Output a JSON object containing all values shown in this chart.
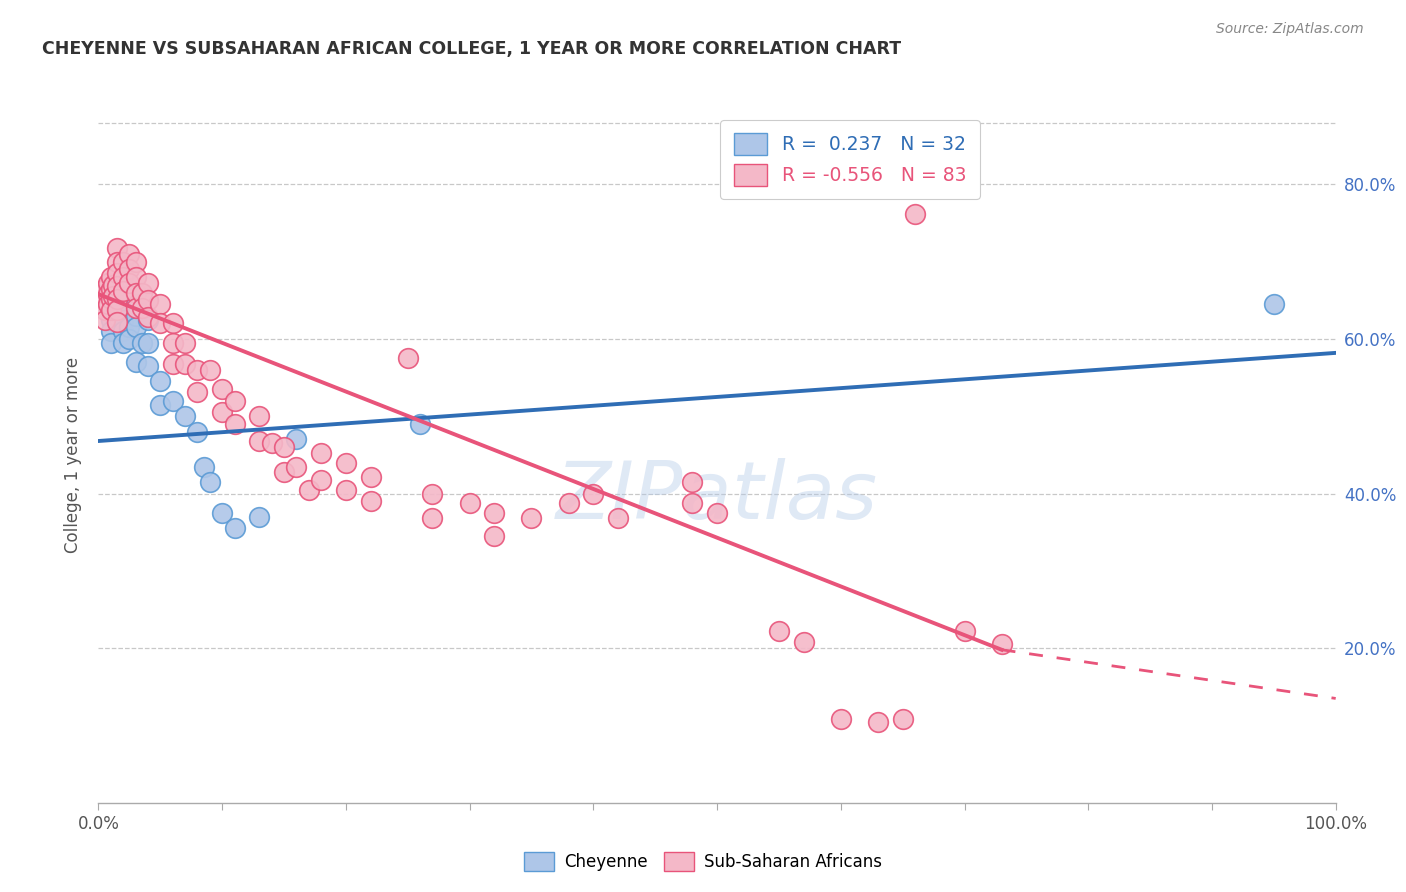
{
  "title": "CHEYENNE VS SUBSAHARAN AFRICAN COLLEGE, 1 YEAR OR MORE CORRELATION CHART",
  "source": "Source: ZipAtlas.com",
  "ylabel": "College, 1 year or more",
  "y_tick_labels": [
    "20.0%",
    "40.0%",
    "60.0%",
    "80.0%"
  ],
  "y_tick_values": [
    0.2,
    0.4,
    0.6,
    0.8
  ],
  "xlim": [
    0.0,
    1.0
  ],
  "ylim": [
    0.0,
    0.9
  ],
  "legend_blue_label": "R =  0.237   N = 32",
  "legend_pink_label": "R = -0.556   N = 83",
  "blue_color": "#aec6e8",
  "pink_color": "#f4b8c8",
  "blue_edge_color": "#5b9bd5",
  "pink_edge_color": "#e8547a",
  "blue_line_color": "#2f6db5",
  "pink_line_color": "#e8547a",
  "watermark_text": "ZIPatlas",
  "blue_scatter": [
    [
      0.01,
      0.625
    ],
    [
      0.01,
      0.61
    ],
    [
      0.01,
      0.595
    ],
    [
      0.015,
      0.63
    ],
    [
      0.02,
      0.655
    ],
    [
      0.02,
      0.64
    ],
    [
      0.02,
      0.625
    ],
    [
      0.02,
      0.61
    ],
    [
      0.02,
      0.595
    ],
    [
      0.025,
      0.615
    ],
    [
      0.025,
      0.6
    ],
    [
      0.03,
      0.645
    ],
    [
      0.03,
      0.63
    ],
    [
      0.03,
      0.615
    ],
    [
      0.03,
      0.57
    ],
    [
      0.035,
      0.595
    ],
    [
      0.04,
      0.625
    ],
    [
      0.04,
      0.595
    ],
    [
      0.04,
      0.565
    ],
    [
      0.05,
      0.545
    ],
    [
      0.05,
      0.515
    ],
    [
      0.06,
      0.52
    ],
    [
      0.07,
      0.5
    ],
    [
      0.08,
      0.48
    ],
    [
      0.085,
      0.435
    ],
    [
      0.09,
      0.415
    ],
    [
      0.1,
      0.375
    ],
    [
      0.11,
      0.355
    ],
    [
      0.13,
      0.37
    ],
    [
      0.16,
      0.47
    ],
    [
      0.26,
      0.49
    ],
    [
      0.95,
      0.645
    ]
  ],
  "pink_scatter": [
    [
      0.005,
      0.665
    ],
    [
      0.005,
      0.65
    ],
    [
      0.005,
      0.638
    ],
    [
      0.005,
      0.625
    ],
    [
      0.008,
      0.672
    ],
    [
      0.008,
      0.658
    ],
    [
      0.008,
      0.645
    ],
    [
      0.01,
      0.68
    ],
    [
      0.01,
      0.665
    ],
    [
      0.01,
      0.652
    ],
    [
      0.01,
      0.638
    ],
    [
      0.012,
      0.67
    ],
    [
      0.012,
      0.655
    ],
    [
      0.015,
      0.718
    ],
    [
      0.015,
      0.7
    ],
    [
      0.015,
      0.685
    ],
    [
      0.015,
      0.668
    ],
    [
      0.015,
      0.652
    ],
    [
      0.015,
      0.638
    ],
    [
      0.015,
      0.622
    ],
    [
      0.02,
      0.7
    ],
    [
      0.02,
      0.68
    ],
    [
      0.02,
      0.662
    ],
    [
      0.025,
      0.71
    ],
    [
      0.025,
      0.69
    ],
    [
      0.025,
      0.672
    ],
    [
      0.03,
      0.7
    ],
    [
      0.03,
      0.68
    ],
    [
      0.03,
      0.66
    ],
    [
      0.03,
      0.64
    ],
    [
      0.035,
      0.66
    ],
    [
      0.035,
      0.64
    ],
    [
      0.04,
      0.672
    ],
    [
      0.04,
      0.65
    ],
    [
      0.04,
      0.628
    ],
    [
      0.05,
      0.645
    ],
    [
      0.05,
      0.62
    ],
    [
      0.06,
      0.62
    ],
    [
      0.06,
      0.595
    ],
    [
      0.06,
      0.568
    ],
    [
      0.07,
      0.595
    ],
    [
      0.07,
      0.568
    ],
    [
      0.08,
      0.56
    ],
    [
      0.08,
      0.532
    ],
    [
      0.09,
      0.56
    ],
    [
      0.1,
      0.535
    ],
    [
      0.1,
      0.505
    ],
    [
      0.11,
      0.52
    ],
    [
      0.11,
      0.49
    ],
    [
      0.13,
      0.5
    ],
    [
      0.13,
      0.468
    ],
    [
      0.14,
      0.465
    ],
    [
      0.15,
      0.46
    ],
    [
      0.15,
      0.428
    ],
    [
      0.16,
      0.435
    ],
    [
      0.17,
      0.405
    ],
    [
      0.18,
      0.452
    ],
    [
      0.18,
      0.418
    ],
    [
      0.2,
      0.44
    ],
    [
      0.2,
      0.405
    ],
    [
      0.22,
      0.422
    ],
    [
      0.22,
      0.39
    ],
    [
      0.25,
      0.575
    ],
    [
      0.27,
      0.4
    ],
    [
      0.27,
      0.368
    ],
    [
      0.3,
      0.388
    ],
    [
      0.32,
      0.375
    ],
    [
      0.32,
      0.345
    ],
    [
      0.35,
      0.368
    ],
    [
      0.38,
      0.388
    ],
    [
      0.4,
      0.4
    ],
    [
      0.42,
      0.368
    ],
    [
      0.48,
      0.415
    ],
    [
      0.48,
      0.388
    ],
    [
      0.5,
      0.375
    ],
    [
      0.55,
      0.222
    ],
    [
      0.57,
      0.208
    ],
    [
      0.6,
      0.108
    ],
    [
      0.63,
      0.105
    ],
    [
      0.65,
      0.108
    ],
    [
      0.66,
      0.762
    ],
    [
      0.7,
      0.222
    ],
    [
      0.73,
      0.205
    ]
  ],
  "blue_line": [
    0.0,
    1.0,
    0.468,
    0.582
  ],
  "pink_solid_line": [
    0.0,
    0.73,
    0.658,
    0.198
  ],
  "pink_dashed_line": [
    0.73,
    1.0,
    0.198,
    0.135
  ]
}
